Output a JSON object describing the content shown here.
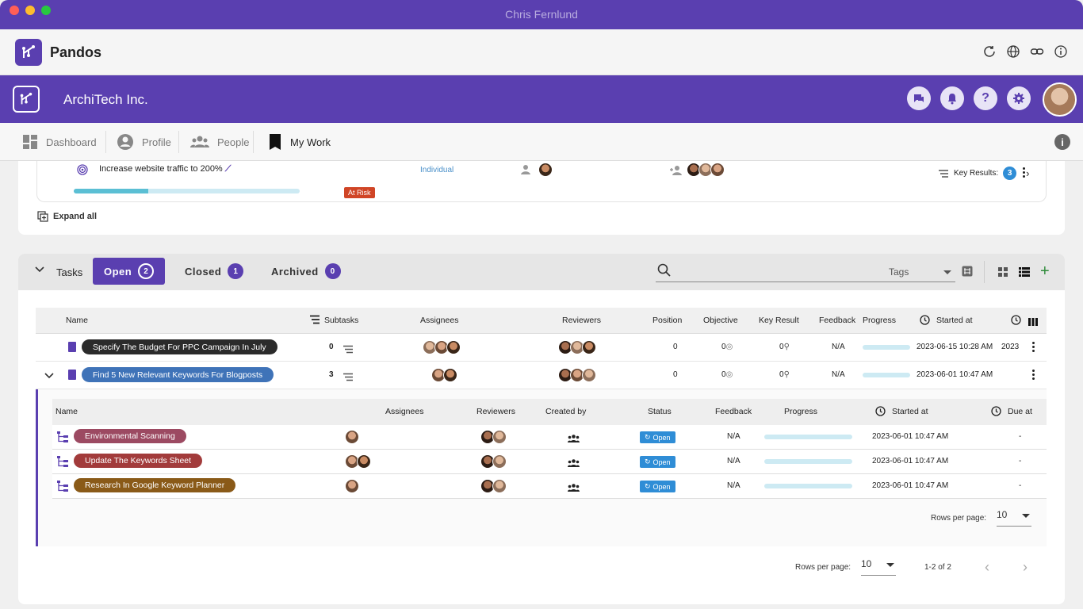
{
  "window": {
    "title": "Chris Fernlund"
  },
  "app": {
    "name": "Pandos"
  },
  "org": {
    "name": "ArchiTech Inc."
  },
  "nav": {
    "items": [
      {
        "label": "Dashboard",
        "icon": "dashboard-icon"
      },
      {
        "label": "Profile",
        "icon": "user-circle-icon"
      },
      {
        "label": "People",
        "icon": "people-icon"
      },
      {
        "label": "My Work",
        "icon": "bookmark-icon"
      }
    ],
    "active": "My Work"
  },
  "objective": {
    "title": "Increase website traffic to 200%",
    "type": "Individual",
    "progress": 0.33,
    "status": "At Risk",
    "key_results_label": "Key Results:",
    "key_results_count": "3",
    "status_color": "#d04526"
  },
  "expand_all": "Expand all",
  "tasks": {
    "label": "Tasks",
    "tabs": [
      {
        "label": "Open",
        "count": "2"
      },
      {
        "label": "Closed",
        "count": "1"
      },
      {
        "label": "Archived",
        "count": "0"
      }
    ],
    "tags_placeholder": "Tags",
    "columns": [
      "Name",
      "Subtasks",
      "Assignees",
      "Reviewers",
      "Position",
      "Objective",
      "Key Result",
      "Feedback",
      "Progress",
      "Started at"
    ],
    "rows": [
      {
        "name": "Specify The Budget For PPC Campaign In July",
        "color": "#2b2b2b",
        "subtasks": "0",
        "position": "0",
        "objective": "0",
        "key_result": "0",
        "feedback": "N/A",
        "progress": 0,
        "started": "2023-06-15 10:28 AM",
        "due_partial": "2023"
      },
      {
        "name": "Find 5 New Relevant Keywords For Blogposts",
        "color": "#3f73b8",
        "subtasks": "3",
        "position": "0",
        "objective": "0",
        "key_result": "0",
        "feedback": "N/A",
        "progress": 0,
        "started": "2023-06-01 10:47 AM",
        "due_partial": ""
      }
    ],
    "subtasks": {
      "columns": [
        "Name",
        "Assignees",
        "Reviewers",
        "Created by",
        "Status",
        "Feedback",
        "Progress",
        "Started at",
        "Due at"
      ],
      "rows": [
        {
          "name": "Environmental Scanning",
          "color": "#9c4a62",
          "status": "Open",
          "feedback": "N/A",
          "progress": 0,
          "started": "2023-06-01 10:47 AM",
          "due": "-"
        },
        {
          "name": "Update The Keywords Sheet",
          "color": "#a23b3b",
          "status": "Open",
          "feedback": "N/A",
          "progress": 0,
          "started": "2023-06-01 10:47 AM",
          "due": "-"
        },
        {
          "name": "Research In Google Keyword Planner",
          "color": "#8a5a18",
          "status": "Open",
          "feedback": "N/A",
          "progress": 0,
          "started": "2023-06-01 10:47 AM",
          "due": "-"
        }
      ],
      "rows_per_page_label": "Rows per page:",
      "rows_per_page": "10"
    },
    "pagination": {
      "rows_per_page_label": "Rows per page:",
      "rows_per_page": "10",
      "range": "1-2 of 2"
    }
  },
  "colors": {
    "brand": "#5a3fb0",
    "open_status": "#2f8dd6",
    "progress_track": "#cdeaf3",
    "progress_fill": "#5bbfd4"
  }
}
